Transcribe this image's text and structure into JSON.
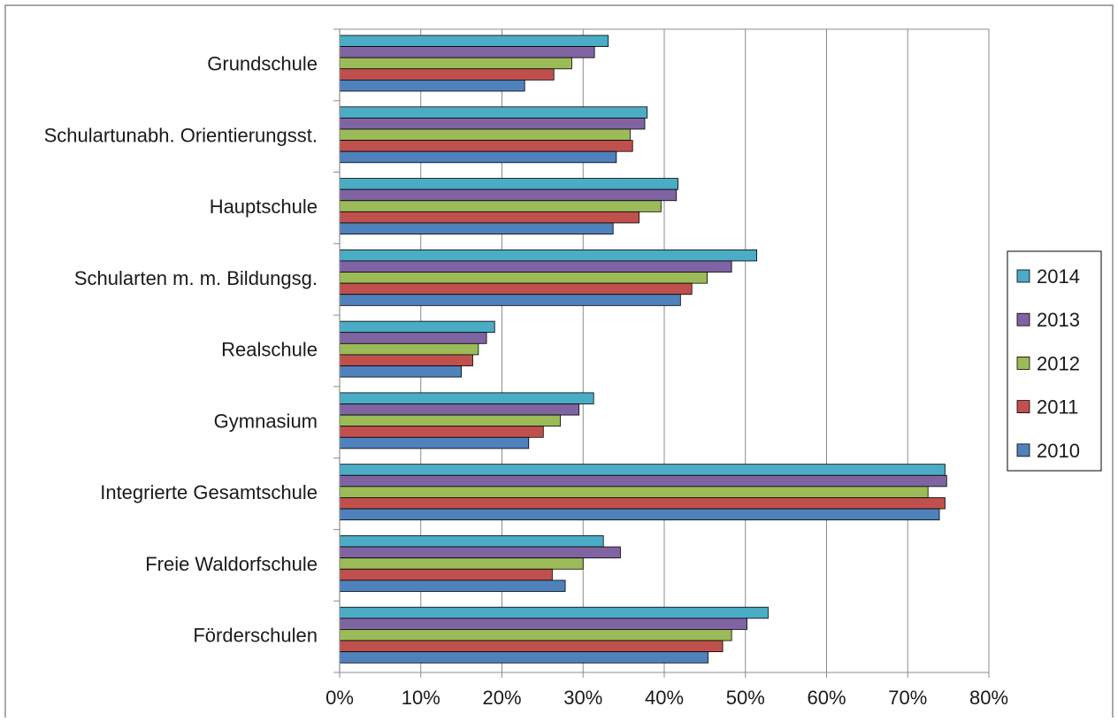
{
  "chart_data": {
    "type": "bar",
    "orientation": "horizontal",
    "categories": [
      "Grundschule",
      "Schulartunabh. Orientierungsst.",
      "Hauptschule",
      "Schularten m. m. Bildungsg.",
      "Realschule",
      "Gymnasium",
      "Integrierte Gesamtschule",
      "Freie Waldorfschule",
      "Förderschulen"
    ],
    "series": [
      {
        "name": "2010",
        "color": "#4f81bd",
        "values": [
          22.8,
          34.1,
          33.7,
          42.0,
          15.0,
          23.3,
          73.9,
          27.8,
          45.4
        ]
      },
      {
        "name": "2011",
        "color": "#c0504d",
        "values": [
          26.4,
          36.1,
          36.9,
          43.4,
          16.4,
          25.1,
          74.6,
          26.2,
          47.2
        ]
      },
      {
        "name": "2012",
        "color": "#9bbb59",
        "values": [
          28.6,
          35.8,
          39.6,
          45.3,
          17.1,
          27.2,
          72.5,
          30.0,
          48.3
        ]
      },
      {
        "name": "2013",
        "color": "#8064a2",
        "values": [
          31.4,
          37.6,
          41.5,
          48.3,
          18.1,
          29.5,
          74.8,
          34.6,
          50.2
        ]
      },
      {
        "name": "2014",
        "color": "#4bacc6",
        "values": [
          33.1,
          37.9,
          41.7,
          51.4,
          19.1,
          31.3,
          74.6,
          32.5,
          52.8
        ]
      }
    ],
    "xlim": [
      0,
      80
    ],
    "xticks": [
      "0%",
      "10%",
      "20%",
      "30%",
      "40%",
      "50%",
      "60%",
      "70%",
      "80%"
    ],
    "title": "",
    "xlabel": "",
    "ylabel": "",
    "grid": "vertical",
    "legend_position": "right",
    "legend_order": [
      "2014",
      "2013",
      "2012",
      "2011",
      "2010"
    ]
  }
}
